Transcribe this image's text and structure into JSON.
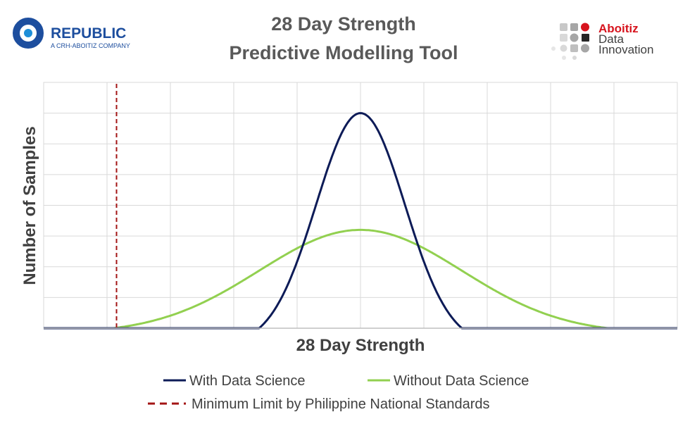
{
  "logos": {
    "left": {
      "name": "REPUBLIC",
      "tagline": "A CRH-ABOITIZ COMPANY",
      "color": "#1d4e9e"
    },
    "right": {
      "brand": "Aboitiz",
      "line2": "Data",
      "line3": "Innovation",
      "brand_color": "#d7141e",
      "text_color": "#404040"
    }
  },
  "chart_data": {
    "type": "line",
    "title": "28 Day Strength",
    "subtitle": "Predictive Modelling Tool",
    "xlabel": "28 Day Strength",
    "ylabel": "Number of Samples",
    "xlim": [
      -5,
      5
    ],
    "ylim": [
      0,
      8
    ],
    "x_grid_count": 10,
    "y_grid_count": 8,
    "grid": true,
    "x_tick_labels_shown": false,
    "y_tick_labels_shown": false,
    "legend_position": "bottom",
    "series": [
      {
        "name": "With Data Science",
        "color": "#0d1b57",
        "peak_x": 0,
        "peak_y": 7,
        "std_dev": 0.7,
        "min_x": -1.6,
        "max_x": 1.6
      },
      {
        "name": "Without Data Science",
        "color": "#92d050",
        "peak_x": 0,
        "peak_y": 3.2,
        "std_dev": 1.6,
        "min_x": -3.9,
        "max_x": 3.9
      }
    ],
    "reference_lines": [
      {
        "name": "Minimum Limit by Philippine National Standards",
        "x": -3.85,
        "color": "#a31515",
        "style": "dashed"
      }
    ]
  }
}
